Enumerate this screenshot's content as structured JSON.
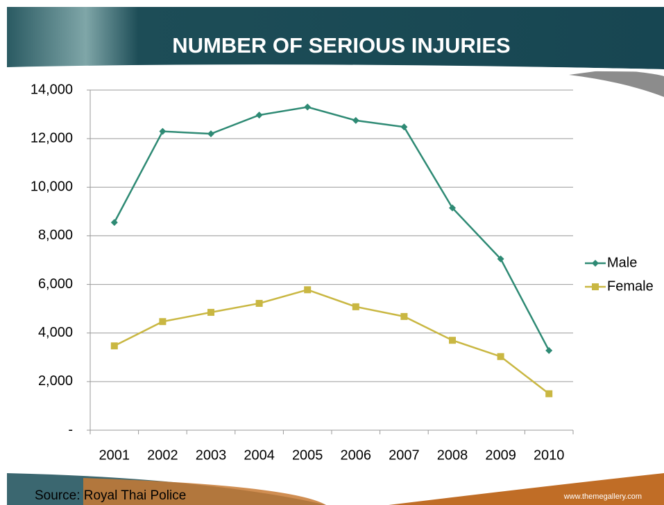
{
  "chart_data": {
    "type": "line",
    "title": "NUMBER OF SERIOUS INJURIES",
    "categories": [
      "2001",
      "2002",
      "2003",
      "2004",
      "2005",
      "2006",
      "2007",
      "2008",
      "2009",
      "2010"
    ],
    "series": [
      {
        "name": "Male",
        "color": "#2e8a74",
        "marker": "diamond",
        "values": [
          8550,
          12300,
          12200,
          12970,
          13300,
          12750,
          12480,
          9150,
          7050,
          3280
        ]
      },
      {
        "name": "Female",
        "color": "#c9b742",
        "marker": "square",
        "values": [
          3470,
          4470,
          4850,
          5220,
          5780,
          5080,
          4680,
          3700,
          3030,
          1500
        ]
      }
    ],
    "ylim": [
      0,
      14000
    ],
    "yticks": [
      {
        "value": 0,
        "label": "-"
      },
      {
        "value": 2000,
        "label": "2,000"
      },
      {
        "value": 4000,
        "label": "4,000"
      },
      {
        "value": 6000,
        "label": "6,000"
      },
      {
        "value": 8000,
        "label": "8,000"
      },
      {
        "value": 10000,
        "label": "10,000"
      },
      {
        "value": 12000,
        "label": "12,000"
      },
      {
        "value": 14000,
        "label": "14,000"
      }
    ],
    "grid": true,
    "legend": "right"
  },
  "footer": {
    "source": "Source: Royal Thai Police",
    "website": "www.themegallery.com"
  }
}
